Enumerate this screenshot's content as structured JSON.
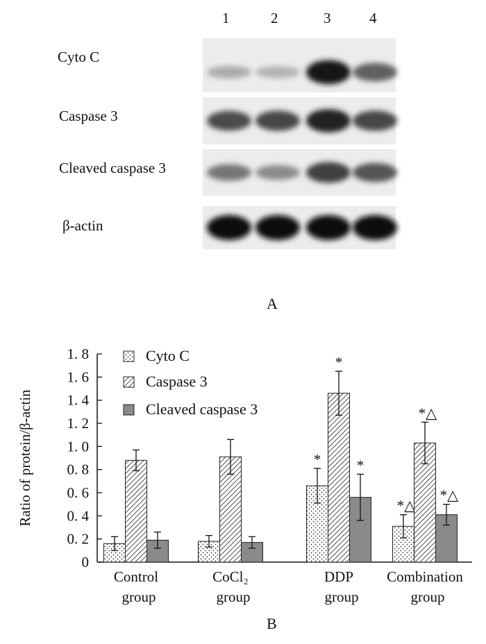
{
  "panel_a": {
    "letter": "A",
    "lane_numbers": [
      "1",
      "2",
      "3",
      "4"
    ],
    "rows": [
      {
        "label": "Cyto C",
        "band_intensity": [
          0.25,
          0.22,
          0.95,
          0.6
        ]
      },
      {
        "label": "Caspase 3",
        "band_intensity": [
          0.7,
          0.72,
          0.9,
          0.72
        ]
      },
      {
        "label": "Cleaved caspase 3",
        "band_intensity": [
          0.5,
          0.4,
          0.75,
          0.65
        ]
      },
      {
        "label": "β-actin",
        "band_intensity": [
          1.0,
          1.0,
          1.0,
          1.0
        ]
      }
    ]
  },
  "panel_b_letter": "B",
  "chart_data": {
    "type": "bar",
    "ylabel": "Ratio of protein/β-actin",
    "ylim": [
      0,
      1.8
    ],
    "yticks": [
      "0",
      "0. 2",
      "0. 4",
      "0. 6",
      "0. 8",
      "1. 0",
      "1. 2",
      "1. 4",
      "1. 6",
      "1. 8"
    ],
    "categories": [
      [
        "Control",
        "group"
      ],
      [
        "CoCl₂",
        "group"
      ],
      [
        "DDP",
        "group"
      ],
      [
        "Combination",
        "group"
      ]
    ],
    "legend_position": "top-left",
    "series": [
      {
        "name": "Cyto C",
        "pattern": "dots",
        "color": "#ffffff",
        "values": [
          0.16,
          0.18,
          0.66,
          0.31
        ],
        "errors": [
          0.06,
          0.05,
          0.15,
          0.1
        ],
        "annotations": [
          "",
          "",
          "*",
          "*△"
        ]
      },
      {
        "name": "Caspase 3",
        "pattern": "hatch",
        "color": "#ffffff",
        "values": [
          0.88,
          0.91,
          1.46,
          1.03
        ],
        "errors": [
          0.09,
          0.15,
          0.19,
          0.18
        ],
        "annotations": [
          "",
          "",
          "*",
          "*△"
        ]
      },
      {
        "name": "Cleaved caspase 3",
        "pattern": "solid",
        "color": "#8a8a8a",
        "values": [
          0.19,
          0.17,
          0.56,
          0.41
        ],
        "errors": [
          0.07,
          0.05,
          0.2,
          0.09
        ],
        "annotations": [
          "",
          "",
          "*",
          "*△"
        ]
      }
    ]
  }
}
